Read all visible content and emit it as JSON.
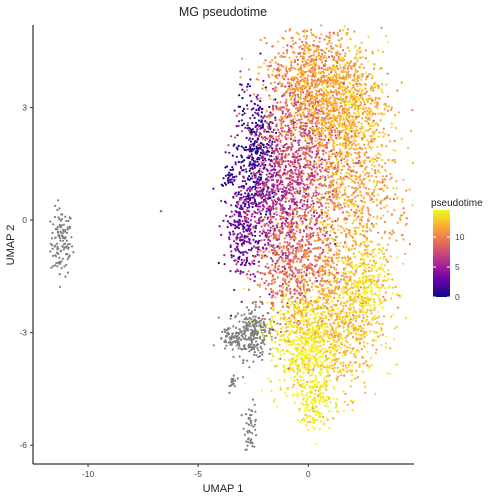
{
  "chart_data": {
    "type": "scatter",
    "title": "MG pseudotime",
    "xlabel": "UMAP 1",
    "ylabel": "UMAP 2",
    "xlim": [
      -12.5,
      4.8
    ],
    "ylim": [
      -6.5,
      5.2
    ],
    "x_ticks": [
      -10,
      -5,
      0
    ],
    "y_ticks": [
      -6,
      -3,
      0,
      3
    ],
    "grid": false,
    "legend": {
      "title": "pseudotime",
      "position": "right",
      "type": "colorbar",
      "ticks": [
        0,
        5,
        10
      ],
      "range": [
        0,
        14.5
      ],
      "colormap": "plasma"
    },
    "na_color": "#808080",
    "cluster_colors": [
      "#0d0887",
      "#6a00a8",
      "#b12a90",
      "#e16462",
      "#fca636",
      "#f0f921"
    ],
    "clusters": [
      {
        "x": -11.2,
        "y": -0.6,
        "sx": 0.25,
        "sy": 0.45,
        "n": 120,
        "pseudotime": null
      },
      {
        "x": -2.5,
        "y": -3.0,
        "sx": 0.45,
        "sy": 0.35,
        "n": 260,
        "pseudotime": null
      },
      {
        "x": -3.5,
        "y": -3.2,
        "sx": 0.3,
        "sy": 0.15,
        "n": 60,
        "pseudotime": null
      },
      {
        "x": -3.4,
        "y": -4.3,
        "sx": 0.08,
        "sy": 0.12,
        "n": 20,
        "pseudotime": null
      },
      {
        "x": -2.6,
        "y": -5.5,
        "sx": 0.15,
        "sy": 0.3,
        "n": 50,
        "pseudotime": null
      },
      {
        "x": -6.7,
        "y": 0.25,
        "sx": 0.02,
        "sy": 0.02,
        "n": 2,
        "pseudotime": null
      },
      {
        "x": -2.3,
        "y": 1.6,
        "sx": 0.5,
        "sy": 0.9,
        "n": 380,
        "pseudotime": 0.8
      },
      {
        "x": -3.6,
        "y": 1.2,
        "sx": 0.15,
        "sy": 0.12,
        "n": 30,
        "pseudotime": 1.0
      },
      {
        "x": -3.0,
        "y": -0.2,
        "sx": 0.4,
        "sy": 0.8,
        "n": 260,
        "pseudotime": 3.0
      },
      {
        "x": -1.3,
        "y": 0.4,
        "sx": 0.9,
        "sy": 1.0,
        "n": 550,
        "pseudotime": 5.5
      },
      {
        "x": -0.3,
        "y": 1.8,
        "sx": 1.0,
        "sy": 1.1,
        "n": 750,
        "pseudotime": 7.5
      },
      {
        "x": -0.6,
        "y": -1.3,
        "sx": 0.9,
        "sy": 0.8,
        "n": 600,
        "pseudotime": 9.5
      },
      {
        "x": 0.3,
        "y": 3.6,
        "sx": 1.1,
        "sy": 0.8,
        "n": 1000,
        "pseudotime": 11.0
      },
      {
        "x": 1.8,
        "y": 3.0,
        "sx": 0.9,
        "sy": 0.8,
        "n": 550,
        "pseudotime": 12.5
      },
      {
        "x": 2.0,
        "y": 0.5,
        "sx": 1.1,
        "sy": 1.4,
        "n": 900,
        "pseudotime": 11.5
      },
      {
        "x": 1.3,
        "y": -2.8,
        "sx": 1.0,
        "sy": 0.9,
        "n": 700,
        "pseudotime": 12.5
      },
      {
        "x": 2.6,
        "y": -1.8,
        "sx": 0.6,
        "sy": 0.6,
        "n": 250,
        "pseudotime": 14.0
      },
      {
        "x": -0.2,
        "y": -3.3,
        "sx": 0.8,
        "sy": 0.7,
        "n": 550,
        "pseudotime": 14.5
      },
      {
        "x": 0.3,
        "y": -4.9,
        "sx": 0.4,
        "sy": 0.35,
        "n": 150,
        "pseudotime": 14.5
      }
    ]
  }
}
